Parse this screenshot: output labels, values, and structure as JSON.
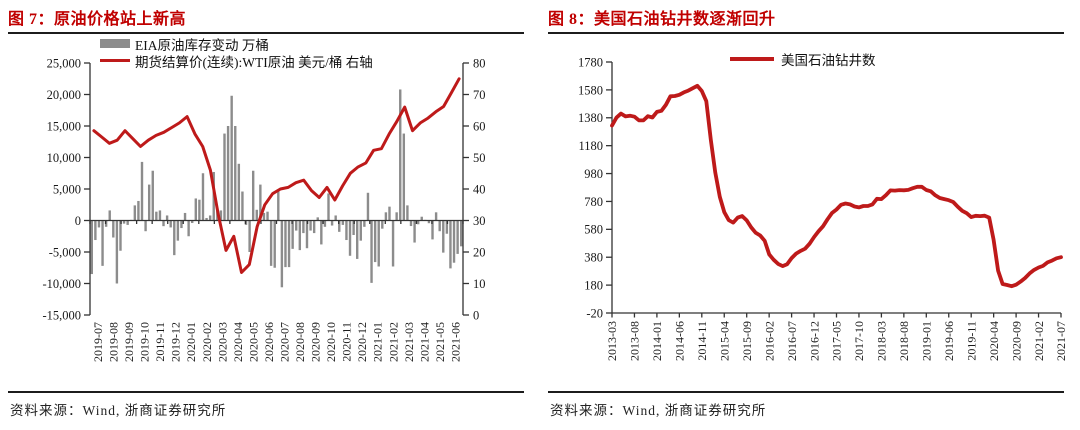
{
  "ui": {
    "source": "资料来源：Wind, 浙商证券研究所"
  },
  "chart_data": [
    {
      "type": "bar",
      "combo": "bar+line",
      "title": "图 7：原油价格站上新高",
      "legend_position": "top-left-inside",
      "grid": false,
      "x_labels": [
        "2019-07",
        "2019-08",
        "2019-09",
        "2019-10",
        "2019-11",
        "2019-12",
        "2020-01",
        "2020-02",
        "2020-03",
        "2020-04",
        "2020-05",
        "2020-06",
        "2020-07",
        "2020-08",
        "2020-09",
        "2020-10",
        "2020-11",
        "2020-12",
        "2021-01",
        "2021-02",
        "2021-03",
        "2021-04",
        "2021-05",
        "2021-06"
      ],
      "left_axis": {
        "series": "EIA原油库存变动 万桶",
        "min": -15000,
        "max": 25000,
        "tick_step": 5000,
        "tick_labels": [
          "25,000",
          "20,000",
          "15,000",
          "10,000",
          "5,000",
          "0",
          "-5,000",
          "-10,000",
          "-15,000"
        ]
      },
      "right_axis": {
        "series": "期货结算价(连续):WTI原油 美元/桶 右轴",
        "min": 0,
        "max": 80,
        "tick_step": 10,
        "tick_labels": [
          "80",
          "70",
          "60",
          "50",
          "40",
          "30",
          "20",
          "10",
          "0"
        ]
      },
      "bar_color": "#8c8c8c",
      "line_color": "#be1a1a",
      "bars_weekly": [
        -8500,
        -3100,
        -1100,
        -7200,
        -1000,
        1600,
        -2700,
        -10000,
        -4800,
        -500,
        -700,
        100,
        2400,
        3100,
        9300,
        -1700,
        5700,
        7900,
        1400,
        1600,
        -900,
        800,
        -1100,
        -5500,
        -3200,
        -1200,
        1200,
        -2500,
        -400,
        3500,
        3300,
        7500,
        400,
        800,
        7700,
        2000,
        1600,
        13800,
        15000,
        19800,
        15000,
        9000,
        4600,
        -700,
        -5000,
        7900,
        1700,
        5700,
        1200,
        1400,
        -7200,
        -7500,
        4900,
        -10600,
        -7400,
        -7400,
        -4500,
        -1600,
        -4700,
        -2000,
        -4400,
        -1600,
        -2000,
        500,
        -3800,
        -1000,
        4300,
        -800,
        800,
        -1800,
        -700,
        -3100,
        -5600,
        -2300,
        -6100,
        -3200,
        -1000,
        4400,
        -9900,
        -6600,
        -7300,
        -1300,
        1300,
        2200,
        -7300,
        1300,
        20800,
        13800,
        2400,
        -880,
        -3500,
        -600,
        600,
        100,
        -430,
        -3000,
        1300,
        -1700,
        -5100,
        -2100,
        -7600,
        -6700,
        -5300,
        -4100
      ],
      "line_semimonthly": [
        58.5,
        56.5,
        54.5,
        55.5,
        58.5,
        56,
        53.5,
        55.5,
        57,
        58,
        59.5,
        61,
        63,
        57.5,
        53.5,
        46,
        32,
        20.5,
        25,
        13.5,
        16,
        28,
        35,
        38.5,
        40,
        40.5,
        42,
        42.8,
        39.5,
        37.3,
        40.5,
        36.5,
        41,
        45,
        47,
        48.3,
        52.3,
        52.8,
        57.5,
        61.5,
        66,
        58.5,
        61,
        62.5,
        64.5,
        66.2,
        70.5,
        75
      ]
    },
    {
      "type": "line",
      "title": "图 8：美国石油钻井数逐渐回升",
      "series_name": "美国石油钻井数",
      "grid": false,
      "line_color": "#be1a1a",
      "x_range": [
        "2013-03",
        "2021-07"
      ],
      "x_tick_labels": [
        "2013-03",
        "2013-08",
        "2014-01",
        "2014-06",
        "2014-11",
        "2015-04",
        "2015-09",
        "2016-02",
        "2016-07",
        "2016-12",
        "2017-05",
        "2017-10",
        "2018-03",
        "2018-08",
        "2019-01",
        "2019-06",
        "2019-11",
        "2020-04",
        "2020-09",
        "2021-02",
        "2021-07"
      ],
      "x_tick_every_n_months": 5,
      "y_axis": {
        "min": -20,
        "max": 1780,
        "tick_step": 200,
        "tick_labels": [
          "1780",
          "1580",
          "1380",
          "1180",
          "980",
          "780",
          "580",
          "380",
          "180",
          "-20"
        ]
      },
      "values_monthly": [
        1324,
        1381,
        1410,
        1390,
        1395,
        1388,
        1362,
        1361,
        1391,
        1382,
        1422,
        1430,
        1473,
        1534,
        1536,
        1545,
        1562,
        1575,
        1592,
        1609,
        1572,
        1499,
        1223,
        986,
        813,
        703,
        646,
        628,
        664,
        675,
        644,
        594,
        555,
        536,
        498,
        400,
        362,
        332,
        316,
        330,
        374,
        406,
        425,
        441,
        477,
        525,
        566,
        602,
        652,
        697,
        722,
        756,
        765,
        759,
        744,
        737,
        747,
        747,
        759,
        799,
        797,
        825,
        859,
        858,
        861,
        860,
        863,
        875,
        885,
        885,
        862,
        853,
        824,
        805,
        797,
        789,
        776,
        742,
        713,
        696,
        668,
        677,
        675,
        678,
        664,
        505,
        284,
        188,
        181,
        172,
        183,
        205,
        231,
        264,
        289,
        306,
        318,
        343,
        356,
        372,
        380
      ]
    }
  ]
}
